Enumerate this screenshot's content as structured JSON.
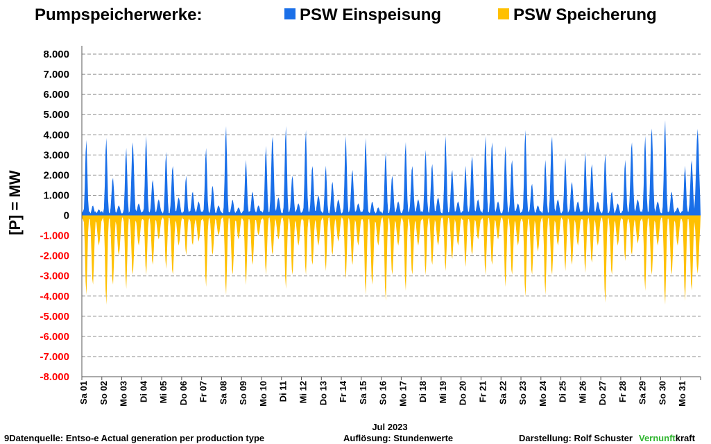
{
  "chart_data": {
    "type": "area",
    "title": "Pumpspeicherwerke:",
    "ylabel": "[P]  = MW",
    "xlabel": "Jul 2023",
    "ylim": [
      -8000,
      8000
    ],
    "y_ticks": [
      8000,
      7000,
      6000,
      5000,
      4000,
      3000,
      2000,
      1000,
      0,
      -1000,
      -2000,
      -3000,
      -4000,
      -5000,
      -6000,
      -7000,
      -8000
    ],
    "y_tick_labels": [
      "8.000",
      "7.000",
      "6.000",
      "5.000",
      "4.000",
      "3.000",
      "2.000",
      "1.000",
      "0",
      "-1.000",
      "-2.000",
      "-3.000",
      "-4.000",
      "-5.000",
      "-6.000",
      "-7.000",
      "-8.000"
    ],
    "negative_tick_color": "#ff0000",
    "grid": true,
    "legend_position": "top",
    "categories": [
      "Sa 01",
      "So 02",
      "Mo 03",
      "Di 04",
      "Mi 05",
      "Do 06",
      "Fr 07",
      "Sa 08",
      "So 09",
      "Mo 10",
      "Di 11",
      "Mi 12",
      "Do 13",
      "Fr 14",
      "Sa 15",
      "So 16",
      "Mo 17",
      "Di 18",
      "Mi 19",
      "Do 20",
      "Fr 21",
      "Sa 22",
      "So 23",
      "Mo 24",
      "Di 25",
      "Mi 26",
      "Do 27",
      "Fr 28",
      "Sa 29",
      "So 30",
      "Mo 31"
    ],
    "series": [
      {
        "name": "PSW Einspeisung",
        "color": "#1a6fe8",
        "daily_peaks": [
          [
            3800,
            500,
            300
          ],
          [
            3900,
            1900,
            500
          ],
          [
            3400,
            3700,
            600
          ],
          [
            4000,
            1800,
            800
          ],
          [
            3200,
            2500,
            900
          ],
          [
            2000,
            1200,
            700
          ],
          [
            3400,
            1500,
            500
          ],
          [
            4500,
            800,
            400
          ],
          [
            2800,
            1200,
            500
          ],
          [
            3500,
            4000,
            900
          ],
          [
            4500,
            2000,
            600
          ],
          [
            4300,
            2500,
            1000
          ],
          [
            2500,
            1700,
            800
          ],
          [
            4000,
            2300,
            600
          ],
          [
            3900,
            700,
            400
          ],
          [
            3200,
            2000,
            700
          ],
          [
            3700,
            2500,
            800
          ],
          [
            3300,
            2600,
            900
          ],
          [
            4000,
            2300,
            700
          ],
          [
            2500,
            3000,
            800
          ],
          [
            4000,
            3700,
            700
          ],
          [
            3500,
            2800,
            600
          ],
          [
            4300,
            1600,
            500
          ],
          [
            2800,
            4000,
            800
          ],
          [
            2900,
            1700,
            700
          ],
          [
            3200,
            2600,
            700
          ],
          [
            3100,
            1200,
            600
          ],
          [
            2800,
            3700,
            800
          ],
          [
            4000,
            4400,
            700
          ],
          [
            4800,
            1200,
            400
          ],
          [
            2500,
            2800,
            4300
          ]
        ]
      },
      {
        "name": "PSW Speicherung",
        "color": "#ffc000",
        "daily_troughs": [
          [
            4000,
            3500,
            1500
          ],
          [
            4500,
            3500,
            2000
          ],
          [
            3700,
            3000,
            1500
          ],
          [
            3000,
            2500,
            1200
          ],
          [
            2700,
            3000,
            1500
          ],
          [
            2000,
            1500,
            1300
          ],
          [
            3600,
            2000,
            1000
          ],
          [
            4000,
            3000,
            1200
          ],
          [
            3500,
            2500,
            1000
          ],
          [
            3000,
            2000,
            1200
          ],
          [
            3700,
            3000,
            1500
          ],
          [
            3000,
            2500,
            1500
          ],
          [
            2800,
            2000,
            1300
          ],
          [
            3200,
            2500,
            1500
          ],
          [
            4000,
            3500,
            1500
          ],
          [
            4300,
            3000,
            1500
          ],
          [
            3800,
            3000,
            1500
          ],
          [
            3000,
            2500,
            1500
          ],
          [
            2800,
            2200,
            1500
          ],
          [
            2600,
            2000,
            1200
          ],
          [
            3000,
            2500,
            1200
          ],
          [
            3600,
            3000,
            1500
          ],
          [
            4100,
            3000,
            1800
          ],
          [
            4000,
            3000,
            1500
          ],
          [
            2800,
            2500,
            1500
          ],
          [
            2900,
            2400,
            1500
          ],
          [
            4400,
            3000,
            1500
          ],
          [
            2300,
            2000,
            1400
          ],
          [
            3800,
            3000,
            1500
          ],
          [
            4500,
            3000,
            1500
          ],
          [
            4300,
            3800,
            2900
          ]
        ]
      }
    ]
  },
  "footer": {
    "source": "9Datenquelle: Entso-e  Actual generation per production type",
    "resolution": "Auflösung: Stundenwerte",
    "author": "Darstellung:  Rolf Schuster",
    "brand_green": "Vernunft",
    "brand_rest": "kraft",
    "brand_color": "#2fb52f"
  }
}
